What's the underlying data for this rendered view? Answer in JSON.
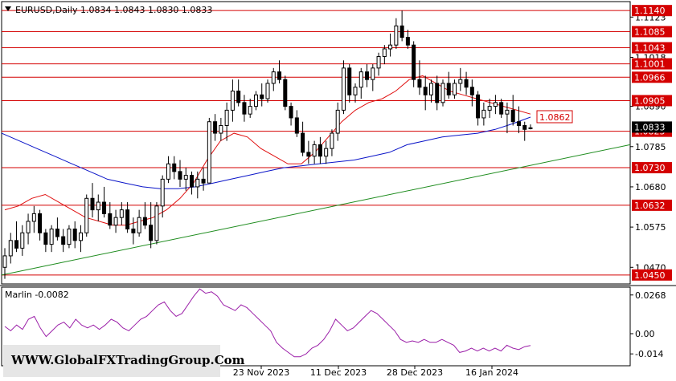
{
  "header": {
    "symbol_line": "EURUSD,Daily  1.0834  1.0843  1.0830  1.0833"
  },
  "watermark": "WWW.GlobalFXTradingGroup.Com",
  "chart_data": {
    "type": "candlestick",
    "symbol": "EURUSD",
    "timeframe": "Daily",
    "ohlc_header": {
      "open": 1.0834,
      "high": 1.0843,
      "low": 1.083,
      "close": 1.0833
    },
    "ylim": [
      1.0435,
      1.1155
    ],
    "price_axis_ticks": [
      "1.1123",
      "1.1018",
      "1.0890",
      "1.0785",
      "1.0680",
      "1.0575",
      "1.0470"
    ],
    "x_tick_labels": [
      "23 Nov 2023",
      "11 Dec 2023",
      "28 Dec 2023",
      "16 Jan 2024"
    ],
    "levels": [
      {
        "label": "1.1140",
        "value": 1.114
      },
      {
        "label": "1.1085",
        "value": 1.1085
      },
      {
        "label": "1.1043",
        "value": 1.1043
      },
      {
        "label": "1.1001",
        "value": 1.1001
      },
      {
        "label": "1.0966",
        "value": 1.0966
      },
      {
        "label": "1.0905",
        "value": 1.0905
      },
      {
        "label": "1.0825",
        "value": 1.0825
      },
      {
        "label": "1.0730",
        "value": 1.073
      },
      {
        "label": "1.0632",
        "value": 1.0632
      },
      {
        "label": "1.0450",
        "value": 1.045
      }
    ],
    "ma_label": "1.0862",
    "current_price_label": "1.0833",
    "candles_ohlc": [
      [
        1.047,
        1.052,
        1.044,
        1.05
      ],
      [
        1.05,
        1.056,
        1.048,
        1.054
      ],
      [
        1.054,
        1.059,
        1.051,
        1.052
      ],
      [
        1.052,
        1.058,
        1.05,
        1.056
      ],
      [
        1.056,
        1.061,
        1.053,
        1.059
      ],
      [
        1.059,
        1.063,
        1.056,
        1.061
      ],
      [
        1.061,
        1.062,
        1.054,
        1.056
      ],
      [
        1.056,
        1.057,
        1.051,
        1.053
      ],
      [
        1.053,
        1.058,
        1.051,
        1.057
      ],
      [
        1.057,
        1.06,
        1.054,
        1.055
      ],
      [
        1.055,
        1.057,
        1.051,
        1.053
      ],
      [
        1.053,
        1.058,
        1.052,
        1.057
      ],
      [
        1.057,
        1.059,
        1.052,
        1.054
      ],
      [
        1.054,
        1.058,
        1.051,
        1.056
      ],
      [
        1.056,
        1.066,
        1.055,
        1.065
      ],
      [
        1.065,
        1.069,
        1.06,
        1.062
      ],
      [
        1.062,
        1.066,
        1.059,
        1.064
      ],
      [
        1.064,
        1.068,
        1.06,
        1.061
      ],
      [
        1.061,
        1.064,
        1.057,
        1.058
      ],
      [
        1.058,
        1.062,
        1.056,
        1.06
      ],
      [
        1.06,
        1.064,
        1.058,
        1.062
      ],
      [
        1.062,
        1.064,
        1.056,
        1.057
      ],
      [
        1.057,
        1.06,
        1.053,
        1.056
      ],
      [
        1.056,
        1.062,
        1.055,
        1.06
      ],
      [
        1.06,
        1.064,
        1.057,
        1.058
      ],
      [
        1.058,
        1.064,
        1.052,
        1.054
      ],
      [
        1.054,
        1.064,
        1.053,
        1.063
      ],
      [
        1.063,
        1.071,
        1.06,
        1.07
      ],
      [
        1.07,
        1.076,
        1.069,
        1.074
      ],
      [
        1.074,
        1.076,
        1.07,
        1.072
      ],
      [
        1.072,
        1.075,
        1.068,
        1.07
      ],
      [
        1.07,
        1.073,
        1.067,
        1.071
      ],
      [
        1.071,
        1.072,
        1.066,
        1.068
      ],
      [
        1.068,
        1.072,
        1.065,
        1.07
      ],
      [
        1.07,
        1.073,
        1.067,
        1.069
      ],
      [
        1.069,
        1.086,
        1.069,
        1.085
      ],
      [
        1.085,
        1.087,
        1.08,
        1.082
      ],
      [
        1.082,
        1.086,
        1.08,
        1.084
      ],
      [
        1.084,
        1.09,
        1.08,
        1.088
      ],
      [
        1.088,
        1.096,
        1.085,
        1.093
      ],
      [
        1.093,
        1.096,
        1.089,
        1.09
      ],
      [
        1.09,
        1.092,
        1.085,
        1.087
      ],
      [
        1.087,
        1.091,
        1.086,
        1.089
      ],
      [
        1.089,
        1.093,
        1.088,
        1.092
      ],
      [
        1.092,
        1.095,
        1.089,
        1.091
      ],
      [
        1.091,
        1.096,
        1.09,
        1.095
      ],
      [
        1.095,
        1.099,
        1.093,
        1.098
      ],
      [
        1.098,
        1.101,
        1.095,
        1.096
      ],
      [
        1.096,
        1.097,
        1.088,
        1.089
      ],
      [
        1.089,
        1.09,
        1.084,
        1.086
      ],
      [
        1.086,
        1.088,
        1.081,
        1.082
      ],
      [
        1.082,
        1.085,
        1.076,
        1.077
      ],
      [
        1.077,
        1.08,
        1.074,
        1.076
      ],
      [
        1.076,
        1.08,
        1.074,
        1.079
      ],
      [
        1.079,
        1.081,
        1.074,
        1.076
      ],
      [
        1.076,
        1.08,
        1.074,
        1.078
      ],
      [
        1.078,
        1.083,
        1.076,
        1.082
      ],
      [
        1.082,
        1.09,
        1.08,
        1.088
      ],
      [
        1.088,
        1.101,
        1.087,
        1.099
      ],
      [
        1.099,
        1.1,
        1.09,
        1.092
      ],
      [
        1.092,
        1.095,
        1.09,
        1.094
      ],
      [
        1.094,
        1.099,
        1.091,
        1.098
      ],
      [
        1.098,
        1.1,
        1.094,
        1.096
      ],
      [
        1.096,
        1.1,
        1.093,
        1.099
      ],
      [
        1.099,
        1.103,
        1.097,
        1.102
      ],
      [
        1.102,
        1.105,
        1.1,
        1.104
      ],
      [
        1.104,
        1.108,
        1.102,
        1.105
      ],
      [
        1.105,
        1.112,
        1.104,
        1.11
      ],
      [
        1.11,
        1.114,
        1.106,
        1.107
      ],
      [
        1.107,
        1.109,
        1.104,
        1.105
      ],
      [
        1.105,
        1.106,
        1.094,
        1.096
      ],
      [
        1.096,
        1.101,
        1.092,
        1.094
      ],
      [
        1.094,
        1.097,
        1.088,
        1.092
      ],
      [
        1.092,
        1.096,
        1.09,
        1.095
      ],
      [
        1.095,
        1.097,
        1.088,
        1.09
      ],
      [
        1.09,
        1.096,
        1.089,
        1.095
      ],
      [
        1.095,
        1.098,
        1.091,
        1.092
      ],
      [
        1.092,
        1.096,
        1.091,
        1.095
      ],
      [
        1.095,
        1.099,
        1.093,
        1.096
      ],
      [
        1.096,
        1.098,
        1.092,
        1.094
      ],
      [
        1.094,
        1.096,
        1.089,
        1.092
      ],
      [
        1.092,
        1.093,
        1.084,
        1.086
      ],
      [
        1.086,
        1.09,
        1.084,
        1.088
      ],
      [
        1.088,
        1.091,
        1.086,
        1.089
      ],
      [
        1.089,
        1.092,
        1.087,
        1.09
      ],
      [
        1.09,
        1.091,
        1.086,
        1.087
      ],
      [
        1.087,
        1.09,
        1.082,
        1.088
      ],
      [
        1.088,
        1.092,
        1.084,
        1.085
      ],
      [
        1.085,
        1.089,
        1.082,
        1.084
      ],
      [
        1.084,
        1.085,
        1.08,
        1.083
      ],
      [
        1.0834,
        1.0843,
        1.083,
        1.0833
      ]
    ],
    "red_ma": [
      1.062,
      1.063,
      1.065,
      1.066,
      1.064,
      1.062,
      1.06,
      1.059,
      1.058,
      1.058,
      1.059,
      1.06,
      1.062,
      1.065,
      1.069,
      1.075,
      1.08,
      1.082,
      1.081,
      1.078,
      1.076,
      1.074,
      1.074,
      1.077,
      1.081,
      1.085,
      1.088,
      1.09,
      1.091,
      1.093,
      1.096,
      1.097,
      1.095,
      1.093,
      1.092,
      1.091,
      1.09,
      1.089,
      1.088,
      1.087
    ],
    "blue_ma": [
      1.082,
      1.08,
      1.078,
      1.076,
      1.074,
      1.072,
      1.07,
      1.069,
      1.068,
      1.0675,
      1.0675,
      1.068,
      1.069,
      1.07,
      1.071,
      1.072,
      1.073,
      1.0735,
      1.074,
      1.0745,
      1.075,
      1.076,
      1.077,
      1.079,
      1.08,
      1.081,
      1.0815,
      1.082,
      1.083,
      1.0845,
      1.0862
    ],
    "trend_line": {
      "start": 1.045,
      "end": 1.079
    },
    "oscillator": {
      "name": "Marlin",
      "value_label": "-0.0082",
      "ticks": [
        "0.0268",
        "0.00",
        "-0.014"
      ],
      "ylim": [
        -0.02,
        0.03
      ],
      "values": [
        0.005,
        0.002,
        0.006,
        0.003,
        0.01,
        0.012,
        0.004,
        -0.002,
        0.002,
        0.006,
        0.008,
        0.004,
        0.01,
        0.006,
        0.004,
        0.006,
        0.003,
        0.006,
        0.01,
        0.008,
        0.004,
        0.002,
        0.006,
        0.01,
        0.012,
        0.016,
        0.02,
        0.022,
        0.016,
        0.012,
        0.014,
        0.02,
        0.026,
        0.031,
        0.028,
        0.029,
        0.026,
        0.02,
        0.018,
        0.016,
        0.02,
        0.018,
        0.014,
        0.01,
        0.006,
        0.002,
        -0.006,
        -0.01,
        -0.013,
        -0.016,
        -0.016,
        -0.014,
        -0.01,
        -0.008,
        -0.004,
        0.002,
        0.01,
        0.006,
        0.002,
        0.004,
        0.008,
        0.012,
        0.016,
        0.014,
        0.01,
        0.006,
        0.002,
        -0.004,
        -0.006,
        -0.005,
        -0.006,
        -0.004,
        -0.006,
        -0.006,
        -0.004,
        -0.006,
        -0.008,
        -0.013,
        -0.012,
        -0.01,
        -0.012,
        -0.01,
        -0.012,
        -0.01,
        -0.012,
        -0.008,
        -0.01,
        -0.011,
        -0.009,
        -0.0082
      ]
    }
  },
  "colors": {
    "level_line": "#d40000",
    "red_ma": "#e01010",
    "blue_ma": "#0a14c8",
    "trend": "#1e8c1e",
    "oscillator": "#9b1fa8",
    "watermark_bg": "#e6e6e6"
  }
}
